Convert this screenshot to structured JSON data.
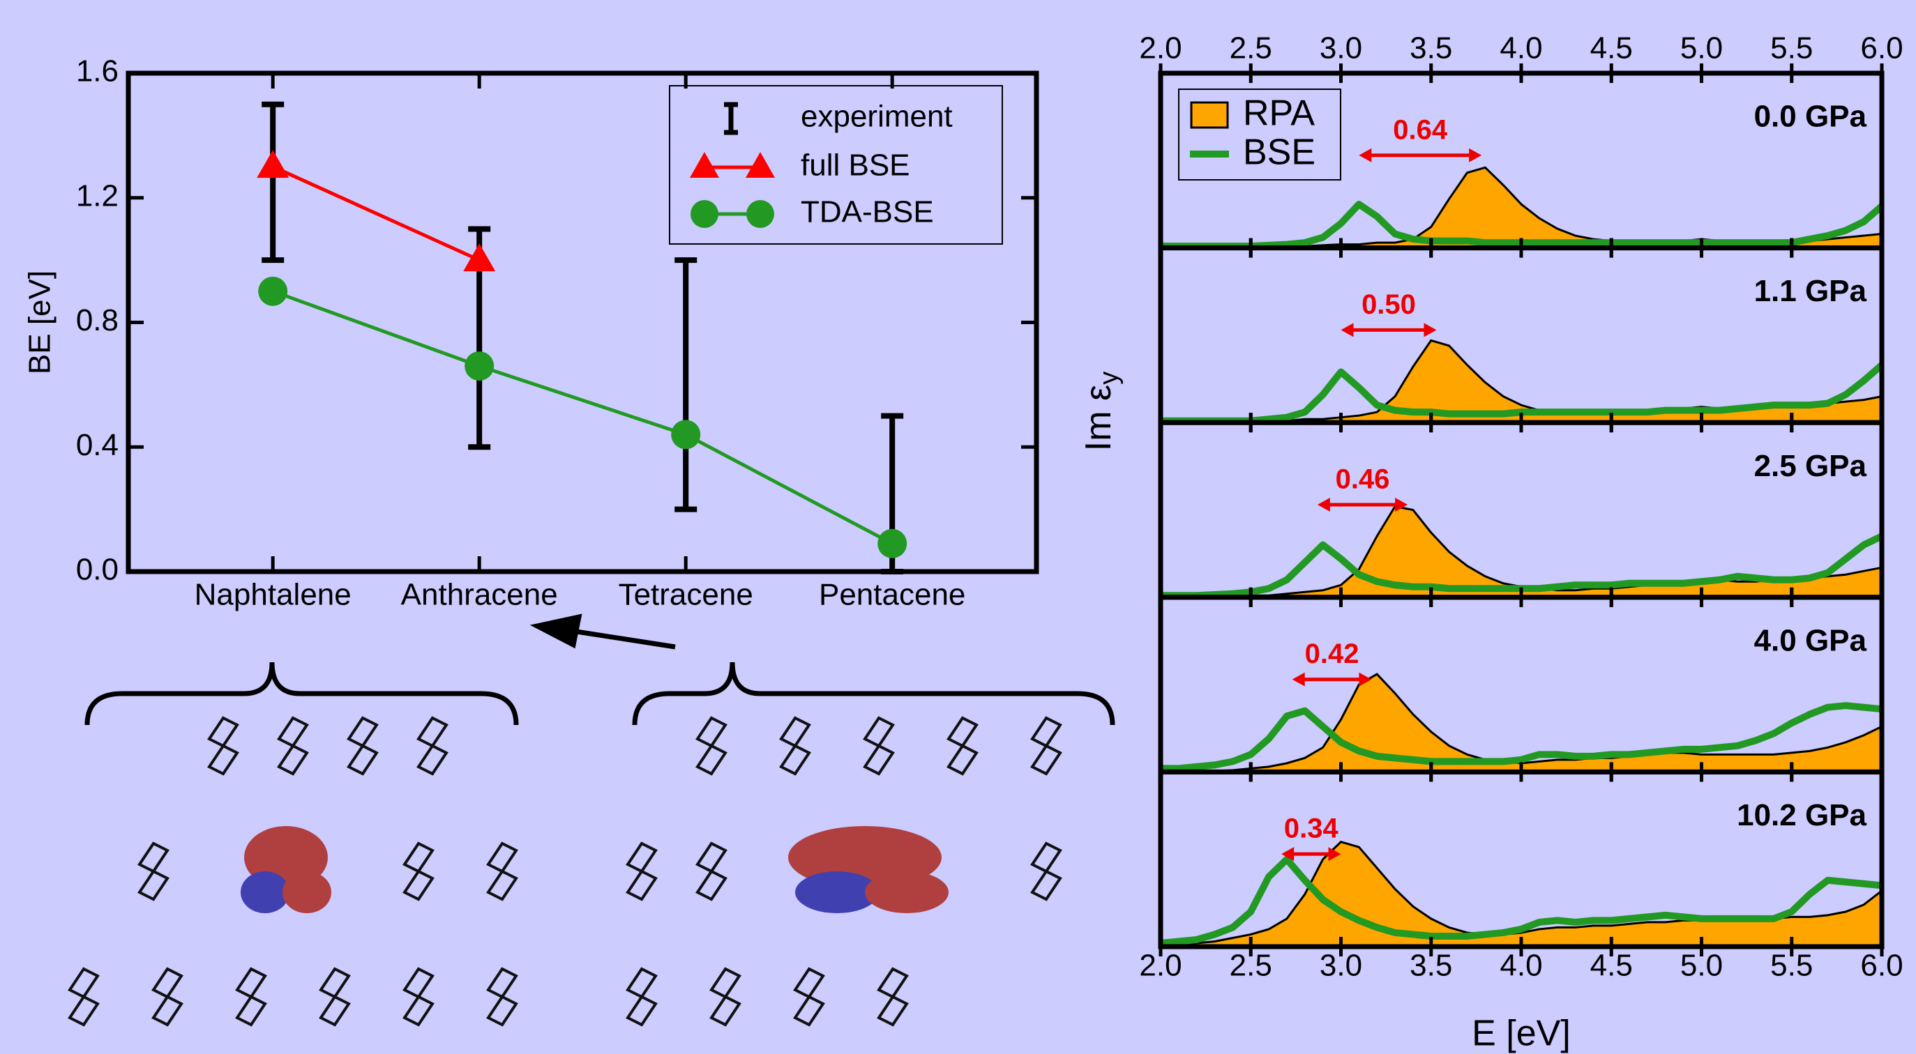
{
  "chart_data": [
    {
      "type": "errorline",
      "ylabel": "BE [eV]",
      "categories": [
        "Naphtalene",
        "Anthracene",
        "Tetracene",
        "Pentacene"
      ],
      "ylim": [
        0,
        1.6
      ],
      "yticks": [
        {
          "value": 0,
          "label": "0.0"
        },
        0.4,
        0.8,
        1.2,
        1.6
      ],
      "experiment": {
        "name": "experiment",
        "color": "#000000",
        "values": [
          1.25,
          0.75,
          0.6,
          0.25
        ],
        "errors": [
          0.25,
          0.35,
          0.4,
          0.25
        ]
      },
      "series": [
        {
          "name": "full BSE",
          "color": "#ff0000",
          "marker": "triangle",
          "values": [
            1.3,
            1.0,
            null,
            null
          ]
        },
        {
          "name": "TDA-BSE",
          "color": "#229922",
          "marker": "circle",
          "values": [
            0.9,
            0.66,
            0.44,
            0.09
          ]
        }
      ]
    },
    {
      "type": "spectra",
      "xlabel": "E [eV]",
      "ylabel": "Im ε",
      "ylabel_sub": "y",
      "xlim": [
        2.0,
        6.0
      ],
      "xticks": [
        {
          "value": 2.0,
          "label": "2.0"
        },
        2.5,
        {
          "value": 3.0,
          "label": "3.0"
        },
        3.5,
        {
          "value": 4.0,
          "label": "4.0"
        },
        4.5,
        {
          "value": 5.0,
          "label": "5.0"
        },
        5.5,
        {
          "value": 6.0,
          "label": "6.0"
        }
      ],
      "ylim": [
        0,
        1
      ],
      "series": [
        {
          "name": "RPA",
          "color": "#ffa500"
        },
        {
          "name": "BSE",
          "color": "#229922"
        }
      ],
      "x": [
        2.0,
        2.1,
        2.2,
        2.3,
        2.4,
        2.5,
        2.6,
        2.7,
        2.8,
        2.9,
        3.0,
        3.1,
        3.2,
        3.3,
        3.4,
        3.5,
        3.6,
        3.7,
        3.8,
        3.9,
        4.0,
        4.1,
        4.2,
        4.3,
        4.4,
        4.5,
        4.6,
        4.7,
        4.8,
        4.9,
        5.0,
        5.1,
        5.2,
        5.3,
        5.4,
        5.5,
        5.6,
        5.7,
        5.8,
        5.9,
        6.0
      ],
      "panels": [
        {
          "label": "0.0 GPa",
          "annotation": "0.64",
          "arrow": [
            3.1,
            3.78
          ],
          "rpa": [
            0,
            0,
            0,
            0,
            0,
            0,
            0.005,
            0.01,
            0.01,
            0.015,
            0.02,
            0.02,
            0.03,
            0.03,
            0.05,
            0.12,
            0.28,
            0.43,
            0.46,
            0.36,
            0.25,
            0.17,
            0.11,
            0.07,
            0.05,
            0.04,
            0.03,
            0.03,
            0.03,
            0.04,
            0.05,
            0.04,
            0.04,
            0.03,
            0.03,
            0.04,
            0.04,
            0.05,
            0.06,
            0.07,
            0.08
          ],
          "bse": [
            0.01,
            0.01,
            0.01,
            0.01,
            0.01,
            0.01,
            0.015,
            0.02,
            0.03,
            0.06,
            0.14,
            0.25,
            0.18,
            0.08,
            0.05,
            0.04,
            0.04,
            0.04,
            0.03,
            0.03,
            0.03,
            0.03,
            0.03,
            0.03,
            0.03,
            0.03,
            0.03,
            0.03,
            0.03,
            0.03,
            0.03,
            0.03,
            0.03,
            0.03,
            0.03,
            0.03,
            0.05,
            0.07,
            0.1,
            0.15,
            0.24
          ]
        },
        {
          "label": "1.1 GPa",
          "annotation": "0.50",
          "arrow": [
            3.0,
            3.53
          ],
          "rpa": [
            0,
            0,
            0,
            0,
            0,
            0.005,
            0.01,
            0.01,
            0.02,
            0.02,
            0.03,
            0.04,
            0.06,
            0.15,
            0.32,
            0.47,
            0.44,
            0.33,
            0.23,
            0.15,
            0.1,
            0.07,
            0.05,
            0.05,
            0.05,
            0.05,
            0.05,
            0.06,
            0.07,
            0.08,
            0.09,
            0.08,
            0.07,
            0.08,
            0.09,
            0.1,
            0.1,
            0.11,
            0.12,
            0.13,
            0.15
          ],
          "bse": [
            0.01,
            0.01,
            0.01,
            0.01,
            0.01,
            0.01,
            0.02,
            0.03,
            0.06,
            0.16,
            0.29,
            0.2,
            0.1,
            0.07,
            0.06,
            0.06,
            0.05,
            0.05,
            0.05,
            0.05,
            0.06,
            0.06,
            0.06,
            0.06,
            0.06,
            0.06,
            0.06,
            0.06,
            0.07,
            0.07,
            0.07,
            0.07,
            0.08,
            0.09,
            0.1,
            0.1,
            0.1,
            0.11,
            0.16,
            0.24,
            0.33
          ]
        },
        {
          "label": "2.5 GPa",
          "annotation": "0.46",
          "arrow": [
            2.87,
            3.37
          ],
          "rpa": [
            0,
            0,
            0,
            0,
            0.005,
            0.01,
            0.01,
            0.02,
            0.03,
            0.04,
            0.07,
            0.16,
            0.35,
            0.52,
            0.5,
            0.37,
            0.26,
            0.18,
            0.12,
            0.08,
            0.06,
            0.05,
            0.04,
            0.04,
            0.05,
            0.05,
            0.06,
            0.07,
            0.08,
            0.09,
            0.1,
            0.1,
            0.09,
            0.09,
            0.1,
            0.1,
            0.11,
            0.12,
            0.13,
            0.15,
            0.17
          ],
          "bse": [
            0.01,
            0.01,
            0.01,
            0.015,
            0.02,
            0.03,
            0.05,
            0.1,
            0.2,
            0.3,
            0.22,
            0.13,
            0.09,
            0.07,
            0.06,
            0.06,
            0.05,
            0.05,
            0.05,
            0.05,
            0.05,
            0.05,
            0.06,
            0.07,
            0.07,
            0.07,
            0.08,
            0.08,
            0.08,
            0.08,
            0.09,
            0.1,
            0.12,
            0.11,
            0.1,
            0.1,
            0.11,
            0.14,
            0.22,
            0.3,
            0.35
          ]
        },
        {
          "label": "4.0 GPa",
          "annotation": "0.42",
          "arrow": [
            2.73,
            3.17
          ],
          "rpa": [
            0,
            0,
            0,
            0.005,
            0.01,
            0.02,
            0.03,
            0.05,
            0.08,
            0.14,
            0.3,
            0.5,
            0.56,
            0.45,
            0.33,
            0.23,
            0.15,
            0.1,
            0.07,
            0.06,
            0.05,
            0.06,
            0.07,
            0.07,
            0.08,
            0.08,
            0.09,
            0.1,
            0.11,
            0.11,
            0.1,
            0.1,
            0.1,
            0.1,
            0.1,
            0.11,
            0.12,
            0.14,
            0.17,
            0.21,
            0.26
          ],
          "bse": [
            0.02,
            0.02,
            0.03,
            0.04,
            0.06,
            0.1,
            0.19,
            0.32,
            0.35,
            0.26,
            0.17,
            0.12,
            0.09,
            0.08,
            0.07,
            0.06,
            0.06,
            0.06,
            0.06,
            0.06,
            0.07,
            0.1,
            0.1,
            0.09,
            0.09,
            0.1,
            0.1,
            0.11,
            0.12,
            0.13,
            0.13,
            0.14,
            0.15,
            0.18,
            0.22,
            0.28,
            0.33,
            0.37,
            0.38,
            0.37,
            0.36
          ]
        },
        {
          "label": "10.2 GPa",
          "annotation": "0.34",
          "arrow": [
            2.67,
            3.0
          ],
          "rpa": [
            0.01,
            0.02,
            0.02,
            0.03,
            0.05,
            0.07,
            0.1,
            0.16,
            0.3,
            0.5,
            0.6,
            0.57,
            0.45,
            0.33,
            0.23,
            0.16,
            0.11,
            0.08,
            0.07,
            0.07,
            0.08,
            0.1,
            0.11,
            0.11,
            0.12,
            0.12,
            0.13,
            0.14,
            0.14,
            0.15,
            0.15,
            0.16,
            0.16,
            0.16,
            0.16,
            0.17,
            0.17,
            0.18,
            0.2,
            0.24,
            0.32
          ],
          "bse": [
            0.02,
            0.03,
            0.04,
            0.07,
            0.11,
            0.2,
            0.4,
            0.5,
            0.38,
            0.27,
            0.2,
            0.15,
            0.11,
            0.08,
            0.07,
            0.06,
            0.06,
            0.06,
            0.07,
            0.08,
            0.1,
            0.14,
            0.15,
            0.14,
            0.15,
            0.15,
            0.16,
            0.17,
            0.18,
            0.17,
            0.16,
            0.16,
            0.16,
            0.16,
            0.16,
            0.2,
            0.3,
            0.38,
            0.37,
            0.36,
            0.35
          ]
        }
      ]
    }
  ]
}
